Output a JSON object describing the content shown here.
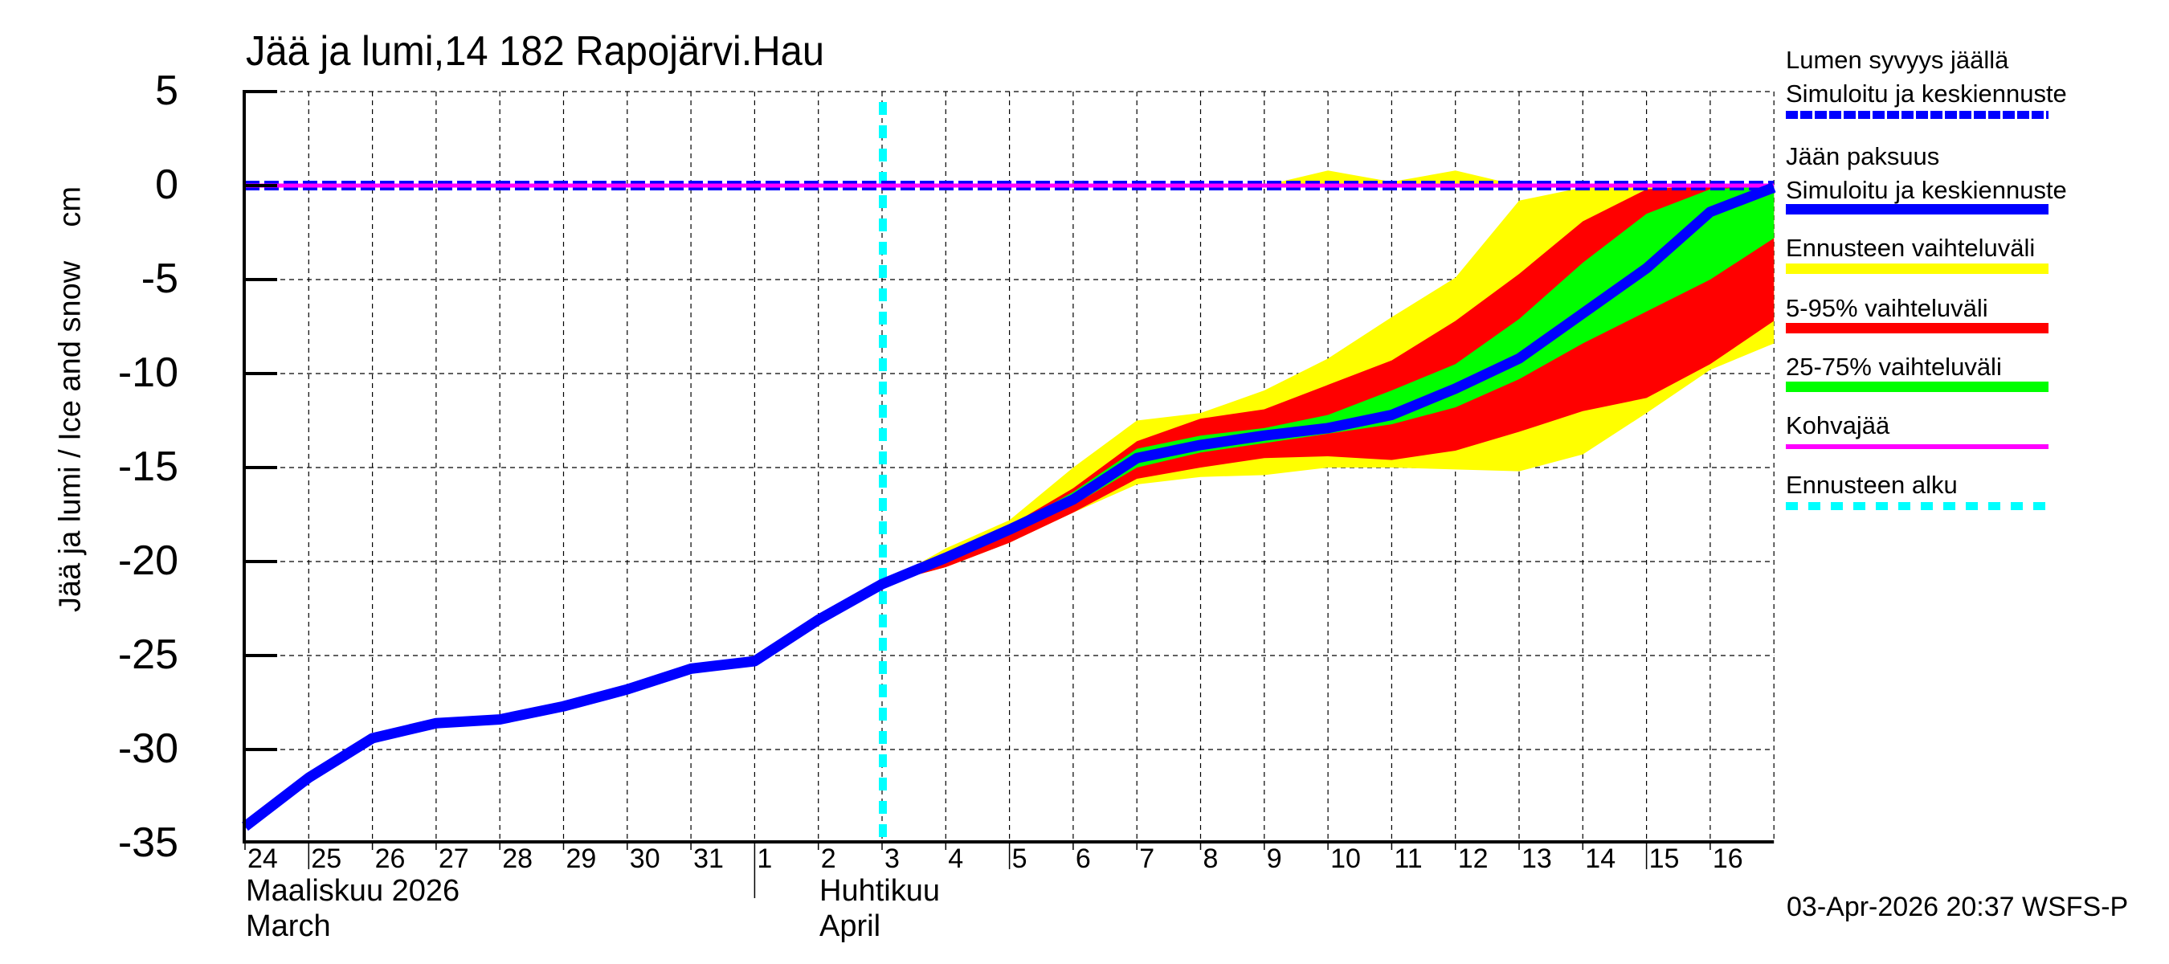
{
  "title": "Jää ja lumi,14 182 Rapojärvi.Hau",
  "y_axis_label": "Jää ja lumi / Ice and snow    cm",
  "y_ticks": [
    "5",
    "0",
    "-5",
    "-10",
    "-15",
    "-20",
    "-25",
    "-30",
    "-35"
  ],
  "x_ticks": [
    "24",
    "25",
    "26",
    "27",
    "28",
    "29",
    "30",
    "31",
    "1",
    "2",
    "3",
    "4",
    "5",
    "6",
    "7",
    "8",
    "9",
    "10",
    "11",
    "12",
    "13",
    "14",
    "15",
    "16"
  ],
  "months": {
    "march_fi": "Maaliskuu 2026",
    "march_en": "March",
    "april_fi": "Huhtikuu",
    "april_en": "April"
  },
  "legend": {
    "snow_title": "Lumen syvyys jäällä",
    "snow_sub": "Simuloitu ja keskiennuste",
    "ice_title": "Jään paksuus",
    "ice_sub": "Simuloitu ja keskiennuste",
    "forecast_range": "Ennusteen vaihteluväli",
    "range_5_95": "5-95% vaihteluväli",
    "range_25_75": "25-75% vaihteluväli",
    "slush_ice": "Kohvajää",
    "forecast_start": "Ennusteen alku"
  },
  "timestamp": "03-Apr-2026 20:37 WSFS-P",
  "colors": {
    "ice_line": "#0000ff",
    "snow_line": "#0000ff",
    "forecast_range": "#ffff00",
    "range_5_95": "#ff0000",
    "range_25_75": "#00ff00",
    "slush_ice": "#ff00ff",
    "forecast_start": "#00ffff"
  },
  "chart_data": {
    "type": "area",
    "title": "Jää ja lumi,14 182 Rapojärvi.Hau",
    "xlabel": "Maaliskuu 2026 / March — Huhtikuu / April",
    "ylabel": "Jää ja lumi / Ice and snow cm",
    "ylim": [
      -35,
      5
    ],
    "y_tick_step": 5,
    "grid": true,
    "legend_position": "right",
    "x": [
      "Mar 24",
      "Mar 25",
      "Mar 26",
      "Mar 27",
      "Mar 28",
      "Mar 29",
      "Mar 30",
      "Mar 31",
      "Apr 1",
      "Apr 2",
      "Apr 3",
      "Apr 4",
      "Apr 5",
      "Apr 6",
      "Apr 7",
      "Apr 8",
      "Apr 9",
      "Apr 10",
      "Apr 11",
      "Apr 12",
      "Apr 13",
      "Apr 14",
      "Apr 15",
      "Apr 16",
      "Apr 17"
    ],
    "forecast_start_index": 10,
    "series": [
      {
        "name": "Jään paksuus – simuloitu (observed ice)",
        "start_index": 0,
        "values": [
          -34.1,
          -31.5,
          -29.4,
          -28.6,
          -28.4,
          -27.7,
          -26.8,
          -25.7,
          -25.3,
          -23.1,
          -21.2
        ]
      },
      {
        "name": "Jään paksuus – keskiennuste (median ice forecast)",
        "start_index": 10,
        "values": [
          -21.2,
          -19.8,
          -18.3,
          -16.7,
          -14.5,
          -13.8,
          -13.3,
          -12.9,
          -12.2,
          -10.8,
          -9.2,
          -6.8,
          -4.4,
          -1.4,
          -0.1
        ]
      },
      {
        "name": "Ennusteen vaihteluväli upper",
        "start_index": 10,
        "values": [
          -21.2,
          -19.3,
          -17.8,
          -15.0,
          -12.5,
          -12.1,
          -10.9,
          -9.2,
          -7.0,
          -4.9,
          -0.8,
          -0.1,
          0,
          0,
          0
        ]
      },
      {
        "name": "Ennusteen vaihteluväli lower",
        "start_index": 10,
        "values": [
          -21.2,
          -20.3,
          -19.0,
          -17.4,
          -15.9,
          -15.5,
          -15.4,
          -15.0,
          -15.0,
          -15.1,
          -15.2,
          -14.3,
          -12.1,
          -9.8,
          -8.4
        ]
      },
      {
        "name": "5-95% upper",
        "start_index": 10,
        "values": [
          -21.2,
          -19.6,
          -18.1,
          -16.1,
          -13.6,
          -12.4,
          -11.9,
          -10.6,
          -9.3,
          -7.2,
          -4.7,
          -1.9,
          -0.2,
          0,
          0
        ]
      },
      {
        "name": "5-95% lower",
        "start_index": 10,
        "values": [
          -21.2,
          -20.3,
          -19.0,
          -17.4,
          -15.6,
          -15.0,
          -14.5,
          -14.4,
          -14.6,
          -14.1,
          -13.1,
          -12.0,
          -11.3,
          -9.5,
          -7.2
        ]
      },
      {
        "name": "25-75% upper",
        "start_index": 10,
        "values": [
          -21.2,
          -19.7,
          -18.2,
          -16.3,
          -14.0,
          -13.3,
          -12.9,
          -12.2,
          -10.9,
          -9.5,
          -7.1,
          -4.1,
          -1.5,
          -0.2,
          0
        ]
      },
      {
        "name": "25-75% lower",
        "start_index": 10,
        "values": [
          -21.2,
          -19.9,
          -18.5,
          -17.0,
          -15.0,
          -14.2,
          -13.7,
          -13.2,
          -12.7,
          -11.8,
          -10.3,
          -8.4,
          -6.7,
          -5.0,
          -2.8
        ]
      },
      {
        "name": "Lumen syvyys – vaihteluväli upper (snow range)",
        "start_index": 15,
        "values": [
          0,
          0,
          0.8,
          0.2,
          0.8,
          0
        ]
      },
      {
        "name": "Lumen syvyys jäällä (snow depth)",
        "start_index": 0,
        "values": [
          0,
          0,
          0,
          0,
          0,
          0,
          0,
          0,
          0,
          0,
          0,
          0,
          0,
          0,
          0,
          0,
          0,
          0,
          0,
          0,
          0,
          0,
          0,
          0,
          0
        ]
      },
      {
        "name": "Kohvajää (slush ice)",
        "start_index": 0,
        "values": [
          0,
          0,
          0,
          0,
          0,
          0,
          0,
          0,
          0,
          0,
          0,
          0,
          0,
          0,
          0,
          0,
          0,
          0,
          0,
          0,
          0,
          0,
          0,
          0,
          0
        ]
      }
    ]
  }
}
